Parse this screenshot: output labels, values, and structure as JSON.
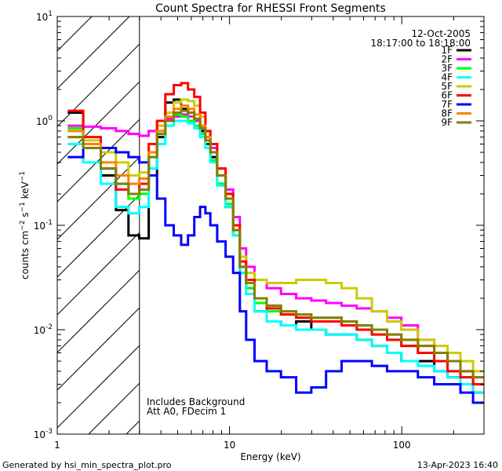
{
  "chart_data": {
    "type": "line",
    "title": "Count Spectra for RHESSI Front Segments",
    "xlabel": "Energy (keV)",
    "ylabel": "counts cm^-2 s^-1 keV^-1",
    "xscale": "log",
    "yscale": "log",
    "xlim": [
      1,
      300
    ],
    "ylim": [
      0.001,
      10
    ],
    "x_ticks": [
      {
        "value": 1,
        "label": "1"
      },
      {
        "value": 10,
        "label": "10"
      },
      {
        "value": 100,
        "label": "100"
      }
    ],
    "y_ticks": [
      {
        "value": 0.001,
        "base": "10",
        "exp": "-3"
      },
      {
        "value": 0.01,
        "base": "10",
        "exp": "-2"
      },
      {
        "value": 0.1,
        "base": "10",
        "exp": "-1"
      },
      {
        "value": 1,
        "base": "10",
        "exp": "0"
      },
      {
        "value": 10,
        "base": "10",
        "exp": "1"
      }
    ],
    "hatched_region_keV": [
      1,
      3
    ],
    "annotations": {
      "date": "12-Oct-2005",
      "time_range": "18:17:00 to 18:18:00",
      "background_note": "Includes Background",
      "attenuator_note": "Att A0, FDecim 1"
    },
    "x": [
      1.25,
      1.6,
      2.0,
      2.4,
      2.8,
      3.2,
      3.6,
      4.0,
      4.5,
      5.0,
      5.5,
      6.0,
      6.5,
      7.0,
      7.5,
      8.0,
      9.0,
      10.0,
      11.0,
      12.0,
      13.0,
      15.0,
      18.0,
      22.0,
      27.0,
      33.0,
      40.0,
      50.0,
      60.0,
      75.0,
      90.0,
      110.0,
      140.0,
      170.0,
      200.0,
      240.0,
      280.0
    ],
    "series": [
      {
        "name": "1F",
        "color": "#000000",
        "values": [
          1.2,
          0.6,
          0.3,
          0.14,
          0.08,
          0.075,
          0.3,
          0.7,
          1.5,
          1.6,
          1.3,
          1.1,
          1.0,
          0.8,
          0.6,
          0.45,
          0.25,
          0.15,
          0.08,
          0.035,
          0.025,
          0.015,
          0.012,
          0.011,
          0.012,
          0.01,
          0.009,
          0.009,
          0.008,
          0.007,
          0.006,
          0.005,
          0.005,
          0.004,
          0.0035,
          0.003,
          0.0025
        ]
      },
      {
        "name": "2F",
        "color": "#ff00ff",
        "values": [
          0.9,
          0.88,
          0.85,
          0.8,
          0.75,
          0.72,
          0.8,
          0.9,
          1.05,
          1.1,
          1.15,
          1.1,
          1.0,
          0.85,
          0.7,
          0.55,
          0.35,
          0.22,
          0.12,
          0.06,
          0.04,
          0.03,
          0.025,
          0.022,
          0.02,
          0.019,
          0.018,
          0.017,
          0.016,
          0.015,
          0.013,
          0.011,
          0.008,
          0.006,
          0.005,
          0.004,
          0.003
        ]
      },
      {
        "name": "3F",
        "color": "#00ff00",
        "values": [
          0.85,
          0.55,
          0.35,
          0.25,
          0.18,
          0.2,
          0.45,
          0.75,
          1.0,
          1.15,
          1.1,
          1.0,
          0.9,
          0.75,
          0.55,
          0.42,
          0.25,
          0.16,
          0.08,
          0.04,
          0.025,
          0.018,
          0.015,
          0.014,
          0.013,
          0.012,
          0.012,
          0.011,
          0.01,
          0.009,
          0.008,
          0.007,
          0.006,
          0.005,
          0.004,
          0.0035,
          0.003
        ]
      },
      {
        "name": "4F",
        "color": "#00ffff",
        "values": [
          0.6,
          0.4,
          0.25,
          0.15,
          0.13,
          0.15,
          0.35,
          0.6,
          0.9,
          1.0,
          1.0,
          0.95,
          0.85,
          0.7,
          0.55,
          0.4,
          0.24,
          0.15,
          0.08,
          0.035,
          0.022,
          0.015,
          0.012,
          0.011,
          0.01,
          0.01,
          0.009,
          0.009,
          0.008,
          0.007,
          0.006,
          0.005,
          0.0045,
          0.004,
          0.0035,
          0.003,
          0.0025
        ]
      },
      {
        "name": "5F",
        "color": "#cccc00",
        "values": [
          0.7,
          0.65,
          0.5,
          0.4,
          0.3,
          0.32,
          0.6,
          0.9,
          1.2,
          1.5,
          1.6,
          1.55,
          1.4,
          1.1,
          0.8,
          0.6,
          0.35,
          0.2,
          0.1,
          0.05,
          0.035,
          0.03,
          0.028,
          0.028,
          0.03,
          0.03,
          0.028,
          0.025,
          0.02,
          0.015,
          0.012,
          0.01,
          0.008,
          0.007,
          0.006,
          0.005,
          0.004
        ]
      },
      {
        "name": "6F",
        "color": "#ff0000",
        "values": [
          1.25,
          0.7,
          0.35,
          0.22,
          0.2,
          0.25,
          0.6,
          1.0,
          1.8,
          2.2,
          2.3,
          2.0,
          1.7,
          1.2,
          0.8,
          0.6,
          0.35,
          0.2,
          0.1,
          0.045,
          0.03,
          0.02,
          0.016,
          0.014,
          0.013,
          0.012,
          0.012,
          0.011,
          0.01,
          0.009,
          0.008,
          0.007,
          0.006,
          0.005,
          0.004,
          0.0035,
          0.003
        ]
      },
      {
        "name": "7F",
        "color": "#0000ff",
        "values": [
          0.45,
          0.55,
          0.55,
          0.5,
          0.45,
          0.4,
          0.3,
          0.18,
          0.1,
          0.08,
          0.065,
          0.08,
          0.12,
          0.15,
          0.13,
          0.1,
          0.07,
          0.05,
          0.035,
          0.015,
          0.008,
          0.005,
          0.004,
          0.0035,
          0.0025,
          0.0028,
          0.004,
          0.005,
          0.005,
          0.0045,
          0.004,
          0.004,
          0.0035,
          0.003,
          0.003,
          0.0025,
          0.002
        ]
      },
      {
        "name": "8F",
        "color": "#ff8000",
        "values": [
          0.8,
          0.6,
          0.4,
          0.3,
          0.25,
          0.28,
          0.5,
          0.8,
          1.1,
          1.3,
          1.4,
          1.3,
          1.15,
          0.9,
          0.7,
          0.5,
          0.3,
          0.18,
          0.09,
          0.04,
          0.028,
          0.02,
          0.017,
          0.015,
          0.014,
          0.013,
          0.013,
          0.012,
          0.011,
          0.01,
          0.009,
          0.008,
          0.007,
          0.006,
          0.005,
          0.004,
          0.0035
        ]
      },
      {
        "name": "9F",
        "color": "#808000",
        "values": [
          0.7,
          0.55,
          0.35,
          0.25,
          0.2,
          0.22,
          0.45,
          0.75,
          1.0,
          1.2,
          1.25,
          1.2,
          1.05,
          0.85,
          0.65,
          0.5,
          0.3,
          0.18,
          0.09,
          0.04,
          0.028,
          0.02,
          0.017,
          0.015,
          0.014,
          0.013,
          0.013,
          0.012,
          0.011,
          0.01,
          0.009,
          0.008,
          0.007,
          0.006,
          0.005,
          0.004,
          0.0035
        ]
      }
    ]
  },
  "footer": {
    "generator": "Generated by hsi_min_spectra_plot.pro",
    "timestamp": "13-Apr-2023 16:40"
  }
}
